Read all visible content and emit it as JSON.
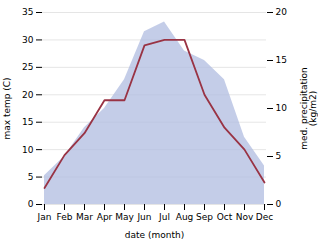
{
  "chart_data": {
    "type": "line",
    "categories": [
      "Jan",
      "Feb",
      "Mar",
      "Apr",
      "May",
      "Jun",
      "Jul",
      "Aug",
      "Sep",
      "Oct",
      "Nov",
      "Dec"
    ],
    "xlabel": "date (month)",
    "ylabel": "max temp (C)",
    "y2label": "med. precipitation\n(kg/m2)",
    "ylim": [
      0,
      35
    ],
    "yticks": [
      0,
      5,
      10,
      15,
      20,
      25,
      30,
      35
    ],
    "y2lim": [
      0,
      20
    ],
    "y2ticks": [
      0,
      5,
      10,
      15,
      20
    ],
    "grid": true,
    "series": [
      {
        "type": "area",
        "axis": "y2",
        "color": "#b0bce0",
        "values": [
          3,
          5,
          8,
          10,
          13,
          18,
          19,
          16,
          15,
          13,
          7,
          4
        ]
      },
      {
        "type": "line",
        "axis": "y",
        "color": "#993344",
        "values": [
          3,
          9,
          13,
          19,
          19,
          29,
          30,
          30,
          20,
          14,
          10,
          4
        ]
      }
    ]
  }
}
